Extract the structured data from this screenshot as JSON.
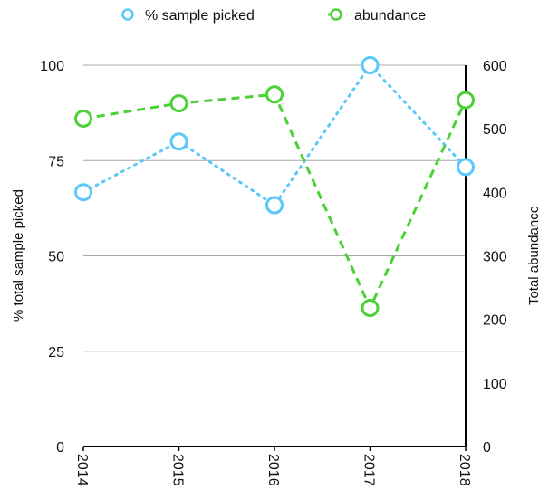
{
  "chart_data": {
    "type": "line",
    "categories": [
      "2014",
      "2015",
      "2016",
      "2017",
      "2018"
    ],
    "series": [
      {
        "name": "% sample picked",
        "axis": "left",
        "values": [
          66.7,
          80,
          63.3,
          100,
          73.3
        ],
        "color": "#5ac8fa",
        "line_style": "dotted"
      },
      {
        "name": "abundance",
        "axis": "right",
        "values": [
          516,
          540,
          554,
          218,
          545
        ],
        "color": "#4cd137",
        "line_style": "dashed"
      }
    ],
    "y_left": {
      "label": "% total sample picked",
      "range": [
        0,
        100
      ],
      "ticks": [
        "0",
        "25",
        "50",
        "75",
        "100"
      ]
    },
    "y_right": {
      "label": "Total abundance",
      "range": [
        0,
        600
      ],
      "ticks": [
        "0",
        "100",
        "200",
        "300",
        "400",
        "500",
        "600"
      ]
    },
    "grid": true,
    "legend_position": "top"
  }
}
